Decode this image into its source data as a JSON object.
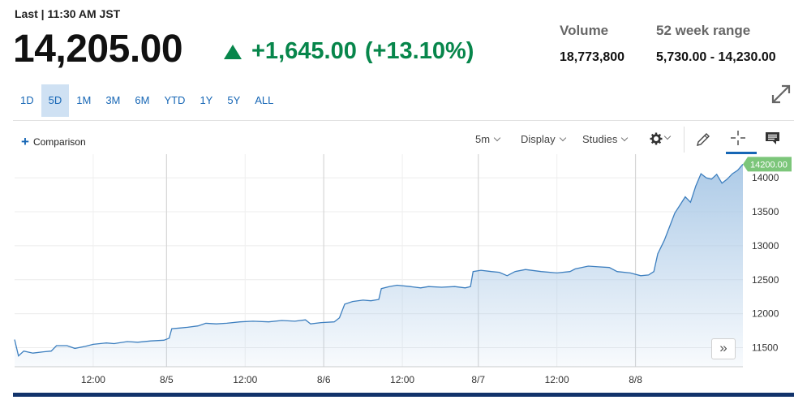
{
  "header": {
    "last_label": "Last | 11:30 AM JST",
    "price": "14,205.00",
    "change": "+1,645.00",
    "change_pct": "(+13.10%)",
    "change_color": "#07864b"
  },
  "stats": {
    "volume_label": "Volume",
    "volume_value": "18,773,800",
    "range_label": "52 week range",
    "range_value": "5,730.00 - 14,230.00"
  },
  "ranges": [
    "1D",
    "5D",
    "1M",
    "3M",
    "6M",
    "YTD",
    "1Y",
    "5Y",
    "ALL"
  ],
  "active_range": "5D",
  "toolbar": {
    "comparison_label": "Comparison",
    "interval_label": "5m",
    "display_label": "Display",
    "studies_label": "Studies",
    "more_label": "»"
  },
  "icons": [
    "expand-icon",
    "plus-icon",
    "gear-icon",
    "pencil-icon",
    "crosshair-icon",
    "comment-icon",
    "double-chevron-right-icon"
  ],
  "chart_data": {
    "type": "area",
    "x_tick_labels": [
      "12:00",
      "8/5",
      "12:00",
      "8/6",
      "12:00",
      "8/7",
      "12:00",
      "8/8"
    ],
    "y_tick_labels": [
      "14000",
      "13500",
      "13000",
      "12500",
      "12000",
      "11500"
    ],
    "ylim": [
      11220,
      14300
    ],
    "last_value_label": "14200.00",
    "line_color": "#3d7fbf",
    "fill_color": "#a9c8e6",
    "series": [
      {
        "values": [
          [
            0,
            11620
          ],
          [
            0.3,
            11380
          ],
          [
            0.7,
            11450
          ],
          [
            1.4,
            11420
          ],
          [
            2.2,
            11440
          ],
          [
            2.8,
            11450
          ],
          [
            3.2,
            11530
          ],
          [
            4,
            11530
          ],
          [
            4.6,
            11490
          ],
          [
            5.4,
            11520
          ],
          [
            6,
            11550
          ],
          [
            7,
            11570
          ],
          [
            7.6,
            11560
          ],
          [
            8.6,
            11590
          ],
          [
            9.4,
            11580
          ],
          [
            10.4,
            11600
          ],
          [
            11.4,
            11610
          ],
          [
            11.8,
            11640
          ],
          [
            12,
            11780
          ],
          [
            12.6,
            11790
          ],
          [
            13.2,
            11800
          ],
          [
            14,
            11820
          ],
          [
            14.6,
            11860
          ],
          [
            15.4,
            11850
          ],
          [
            16.2,
            11860
          ],
          [
            17.2,
            11880
          ],
          [
            18.2,
            11890
          ],
          [
            19.4,
            11880
          ],
          [
            20.4,
            11900
          ],
          [
            21.4,
            11890
          ],
          [
            22.2,
            11910
          ],
          [
            22.6,
            11850
          ],
          [
            23.4,
            11870
          ],
          [
            24.4,
            11880
          ],
          [
            24.8,
            11940
          ],
          [
            25.2,
            12140
          ],
          [
            25.8,
            12180
          ],
          [
            26.6,
            12200
          ],
          [
            27.2,
            12190
          ],
          [
            27.8,
            12210
          ],
          [
            28,
            12370
          ],
          [
            28.6,
            12400
          ],
          [
            29.2,
            12420
          ],
          [
            30.2,
            12400
          ],
          [
            31,
            12380
          ],
          [
            31.6,
            12400
          ],
          [
            32.6,
            12390
          ],
          [
            33.6,
            12400
          ],
          [
            34.4,
            12380
          ],
          [
            34.8,
            12400
          ],
          [
            35,
            12620
          ],
          [
            35.6,
            12640
          ],
          [
            36.4,
            12620
          ],
          [
            37,
            12610
          ],
          [
            37.6,
            12560
          ],
          [
            38.2,
            12620
          ],
          [
            39,
            12650
          ],
          [
            40.2,
            12620
          ],
          [
            41.4,
            12600
          ],
          [
            42.4,
            12620
          ],
          [
            42.8,
            12660
          ],
          [
            43.8,
            12700
          ],
          [
            44.6,
            12690
          ],
          [
            45.4,
            12680
          ],
          [
            46,
            12620
          ],
          [
            47,
            12600
          ],
          [
            47.8,
            12560
          ],
          [
            48.4,
            12570
          ],
          [
            48.8,
            12620
          ],
          [
            49.1,
            12880
          ],
          [
            49.6,
            13080
          ],
          [
            50,
            13280
          ],
          [
            50.4,
            13480
          ],
          [
            50.8,
            13600
          ],
          [
            51.2,
            13720
          ],
          [
            51.6,
            13640
          ],
          [
            52,
            13880
          ],
          [
            52.4,
            14060
          ],
          [
            52.8,
            14000
          ],
          [
            53.2,
            13980
          ],
          [
            53.6,
            14050
          ],
          [
            54,
            13920
          ],
          [
            54.4,
            13980
          ],
          [
            54.8,
            14060
          ],
          [
            55.2,
            14110
          ],
          [
            55.6,
            14200
          ]
        ]
      }
    ],
    "grid": true
  }
}
